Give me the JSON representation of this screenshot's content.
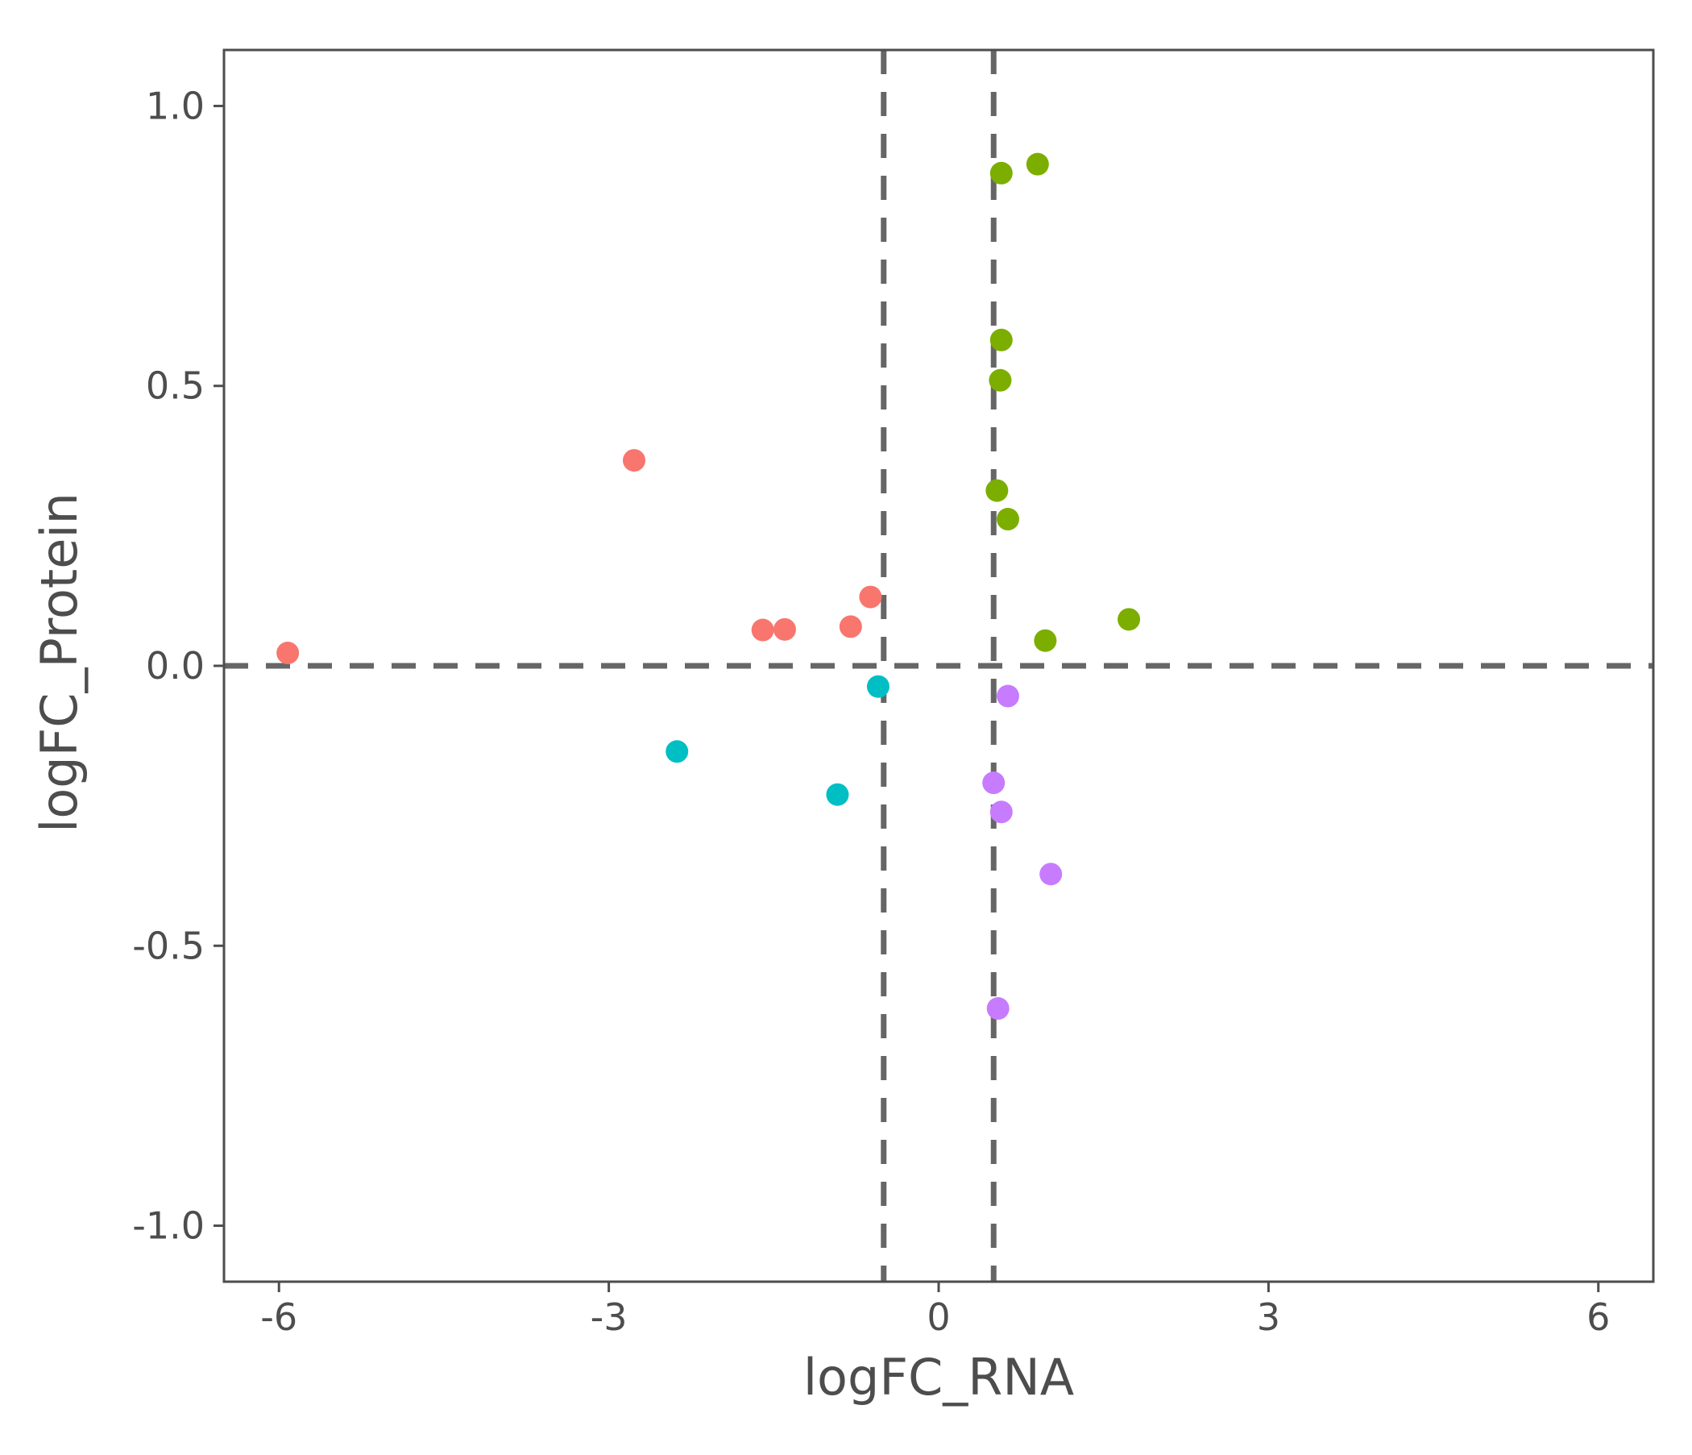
{
  "chart_data": {
    "type": "scatter",
    "title": "",
    "xlabel": "logFC_RNA",
    "ylabel": "logFC_Protein",
    "xlim": [
      -6.5,
      6.5
    ],
    "ylim": [
      -1.1,
      1.1
    ],
    "xticks": [
      -6,
      -3,
      0,
      3,
      6
    ],
    "xtick_labels": [
      "-6",
      "-3",
      "0",
      "3",
      "6"
    ],
    "yticks": [
      -1.0,
      -0.5,
      0.0,
      0.5,
      1.0
    ],
    "ytick_labels": [
      "-1.0",
      "-0.5",
      "0.0",
      "0.5",
      "1.0"
    ],
    "grid": false,
    "legend": "none",
    "reference_lines": {
      "vertical": [
        -0.5,
        0.5
      ],
      "horizontal": [
        0.0
      ],
      "style": "dashed",
      "color": "#666666"
    },
    "series": [
      {
        "color": "#F8766D",
        "points": [
          {
            "x": -5.92,
            "y": 0.023
          },
          {
            "x": -2.77,
            "y": 0.367
          },
          {
            "x": -1.6,
            "y": 0.064
          },
          {
            "x": -1.4,
            "y": 0.065
          },
          {
            "x": -0.8,
            "y": 0.07
          },
          {
            "x": -0.62,
            "y": 0.123
          }
        ]
      },
      {
        "color": "#7CAE00",
        "points": [
          {
            "x": 0.57,
            "y": 0.88
          },
          {
            "x": 0.9,
            "y": 0.896
          },
          {
            "x": 0.57,
            "y": 0.582
          },
          {
            "x": 0.56,
            "y": 0.51
          },
          {
            "x": 0.53,
            "y": 0.313
          },
          {
            "x": 0.63,
            "y": 0.262
          },
          {
            "x": 1.73,
            "y": 0.083
          },
          {
            "x": 0.97,
            "y": 0.045
          }
        ]
      },
      {
        "color": "#00BFC4",
        "points": [
          {
            "x": -0.55,
            "y": -0.037
          },
          {
            "x": -2.38,
            "y": -0.153
          },
          {
            "x": -0.92,
            "y": -0.23
          }
        ]
      },
      {
        "color": "#C77CFF",
        "points": [
          {
            "x": 0.63,
            "y": -0.054
          },
          {
            "x": 0.5,
            "y": -0.209
          },
          {
            "x": 0.57,
            "y": -0.261
          },
          {
            "x": 1.02,
            "y": -0.372
          },
          {
            "x": 0.54,
            "y": -0.612
          }
        ]
      }
    ]
  }
}
